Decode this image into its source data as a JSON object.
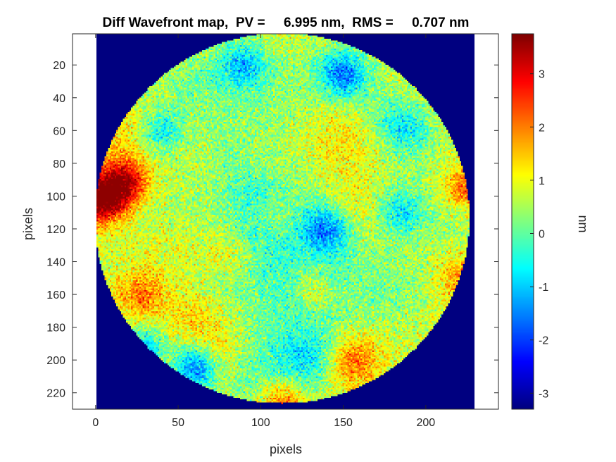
{
  "chart_data": {
    "type": "heatmap",
    "title": "Diff Wavefront map,  PV =     6.995 nm,  RMS =     0.707 nm",
    "xlabel": "pixels",
    "ylabel": "pixels",
    "xlim": [
      -14,
      244
    ],
    "ylim": [
      1,
      230
    ],
    "xticks": [
      "0",
      "50",
      "100",
      "150",
      "200"
    ],
    "xtick_values": [
      0,
      50,
      100,
      150,
      200
    ],
    "yticks": [
      "20",
      "40",
      "60",
      "80",
      "100",
      "120",
      "140",
      "160",
      "180",
      "200",
      "220"
    ],
    "ytick_values": [
      20,
      40,
      60,
      80,
      100,
      120,
      140,
      160,
      180,
      200,
      220
    ],
    "image_extent": {
      "x": [
        1,
        229
      ],
      "y": [
        1,
        230
      ]
    },
    "aperture": {
      "shape": "circle",
      "center_x": 113,
      "center_y": 113.5,
      "radius": 113.5
    },
    "background_value": -3.3,
    "color_range": [
      -3.3,
      3.75
    ],
    "colormap": "jet",
    "colorbar": {
      "label": "nm",
      "ticks": [
        "-3",
        "-2",
        "-1",
        "0",
        "1",
        "2",
        "3"
      ],
      "tick_values": [
        -3,
        -2,
        -1,
        0,
        1,
        2,
        3
      ]
    },
    "features": [
      {
        "x": 3,
        "y": 103,
        "value": 3.3
      },
      {
        "x": 18,
        "y": 92,
        "value": 2.5
      },
      {
        "x": 28,
        "y": 160,
        "value": 1.6
      },
      {
        "x": 112,
        "y": 225,
        "value": 1.8
      },
      {
        "x": 155,
        "y": 200,
        "value": 1.5
      },
      {
        "x": 225,
        "y": 95,
        "value": 2.0
      },
      {
        "x": 222,
        "y": 150,
        "value": 1.5
      },
      {
        "x": 80,
        "y": 135,
        "value": 1.0
      },
      {
        "x": 130,
        "y": 150,
        "value": 1.0
      },
      {
        "x": 60,
        "y": 205,
        "value": -2.3
      },
      {
        "x": 30,
        "y": 195,
        "value": -1.8
      },
      {
        "x": 150,
        "y": 25,
        "value": -1.7
      },
      {
        "x": 90,
        "y": 20,
        "value": -1.3
      },
      {
        "x": 140,
        "y": 120,
        "value": -1.6
      },
      {
        "x": 40,
        "y": 60,
        "value": -1.2
      },
      {
        "x": 185,
        "y": 110,
        "value": -1.2
      },
      {
        "x": 190,
        "y": 60,
        "value": -0.8
      }
    ]
  }
}
